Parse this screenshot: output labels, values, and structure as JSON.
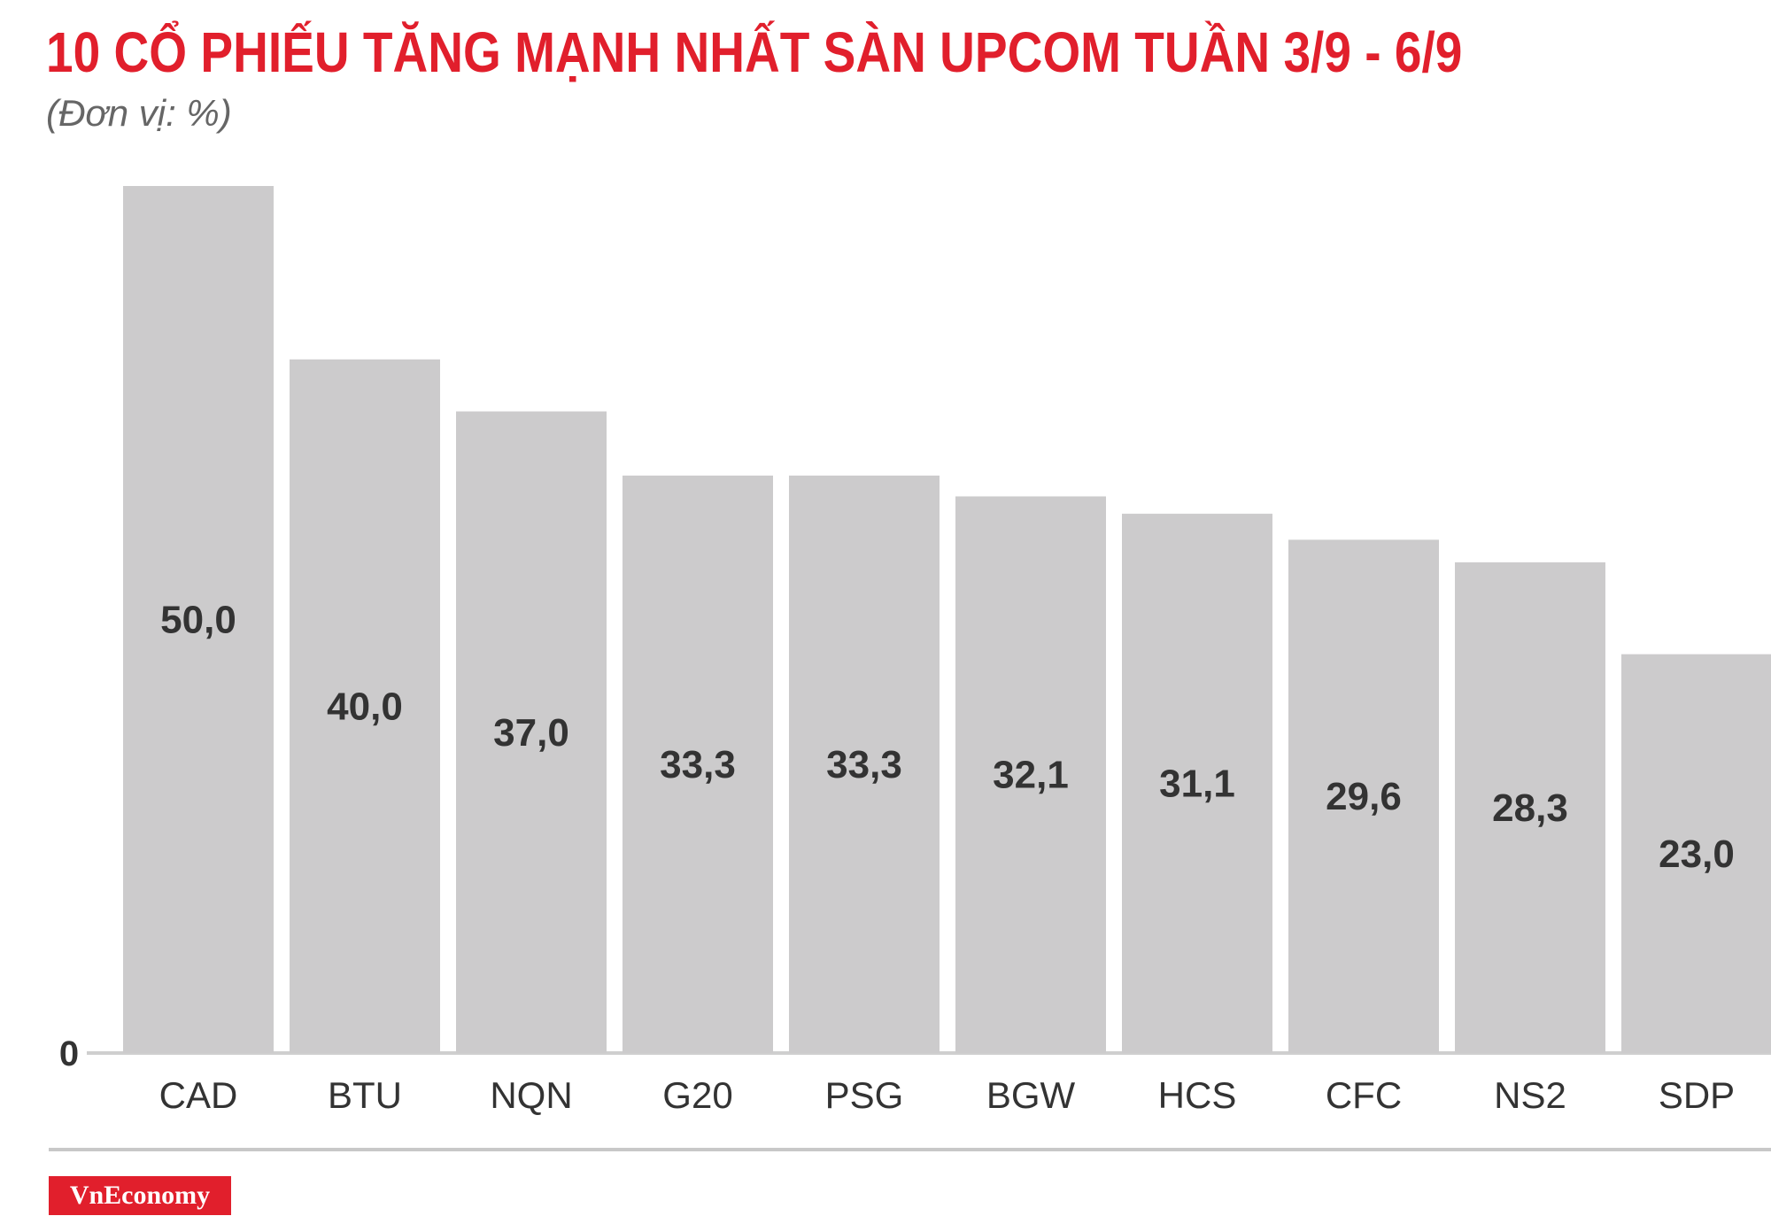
{
  "title": "10 CỔ PHIẾU TĂNG MẠNH NHẤT SÀN UPCOM TUẦN 3/9 - 6/9",
  "subtitle": "(Đơn vị: %)",
  "logo_text": "VnEconomy",
  "colors": {
    "title": "#e11f2c",
    "bar": "#cccbcc",
    "text": "#333333",
    "logo_bg": "#e11f2c"
  },
  "chart_data": {
    "type": "bar",
    "title": "10 CỔ PHIẾU TĂNG MẠNH NHẤT SÀN UPCOM TUẦN 3/9 - 6/9",
    "unit": "(Đơn vị: %)",
    "categories": [
      "CAD",
      "BTU",
      "NQN",
      "G20",
      "PSG",
      "BGW",
      "HCS",
      "CFC",
      "NS2",
      "SDP"
    ],
    "values": [
      50.0,
      40.0,
      37.0,
      33.3,
      33.3,
      32.1,
      31.1,
      29.6,
      28.3,
      23.0
    ],
    "value_labels": [
      "50,0",
      "40,0",
      "37,0",
      "33,3",
      "33,3",
      "32,1",
      "31,1",
      "29,6",
      "28,3",
      "23,0"
    ],
    "y_tick_labels": [
      "0"
    ],
    "ylim": [
      0,
      50
    ],
    "grid": false,
    "legend": "none"
  }
}
